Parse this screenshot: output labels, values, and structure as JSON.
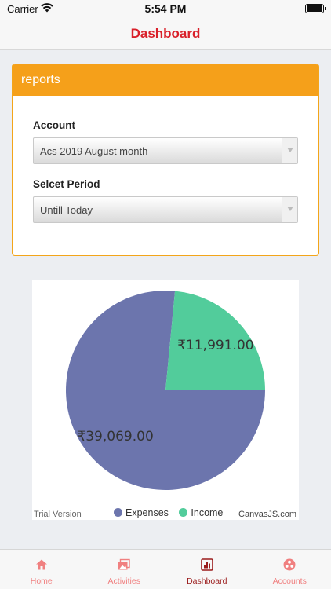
{
  "status_bar": {
    "carrier": "Carrier",
    "time": "5:54 PM"
  },
  "nav": {
    "title": "Dashboard"
  },
  "reports": {
    "header": "reports",
    "account_label": "Account",
    "account_value": "Acs 2019 August month",
    "period_label": "Selcet Period",
    "period_value": "Untill Today"
  },
  "chart_data": {
    "type": "pie",
    "slices": [
      {
        "name": "Expenses",
        "value": 39069.0,
        "label": "₹39,069.00",
        "color": "#6c75ad"
      },
      {
        "name": "Income",
        "value": 11991.0,
        "label": "₹11,991.00",
        "color": "#52cc9b"
      }
    ],
    "legend": [
      "Expenses",
      "Income"
    ],
    "legend_placement": "bottom",
    "watermark": "Trial Version",
    "credit": "CanvasJS.com"
  },
  "tabs": [
    {
      "label": "Home",
      "icon": "home-icon",
      "active": false
    },
    {
      "label": "Activities",
      "icon": "photos-icon",
      "active": false
    },
    {
      "label": "Dashboard",
      "icon": "bar-chart-icon",
      "active": true
    },
    {
      "label": "Accounts",
      "icon": "accounts-icon",
      "active": false
    }
  ],
  "colors": {
    "accent": "#d9202a",
    "card_header": "#f5a01a",
    "tab_inactive": "#f08080",
    "tab_active": "#9b1c1c"
  }
}
